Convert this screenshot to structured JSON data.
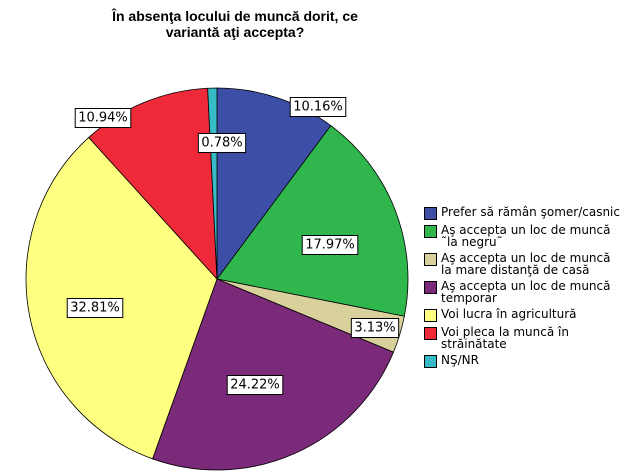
{
  "chart_data": {
    "type": "pie",
    "title": "În absenţa locului de muncă dorit, ce variantă aţi accepta?",
    "categories": [
      "Prefer să rămân şomer/casnic",
      "Aş accepta un loc de muncă ˜la negru˜",
      "Aş accepta un loc de muncă la mare distanţă de casă",
      "Aş accepta un loc de muncă temporar",
      "Voi lucra în agricultură",
      "Voi pleca la muncă în străinătate",
      "NŞ/NR"
    ],
    "values": [
      10.16,
      17.97,
      3.13,
      24.22,
      32.81,
      10.94,
      0.78
    ],
    "value_labels": [
      "10.16%",
      "17.97%",
      "3.13%",
      "24.22%",
      "32.81%",
      "10.94%",
      "0.78%"
    ],
    "colors": [
      "#3c4ea6",
      "#2fb64c",
      "#d8d19c",
      "#7a2a78",
      "#ffff82",
      "#ee2a3a",
      "#36bcc6"
    ],
    "legend": "right"
  }
}
